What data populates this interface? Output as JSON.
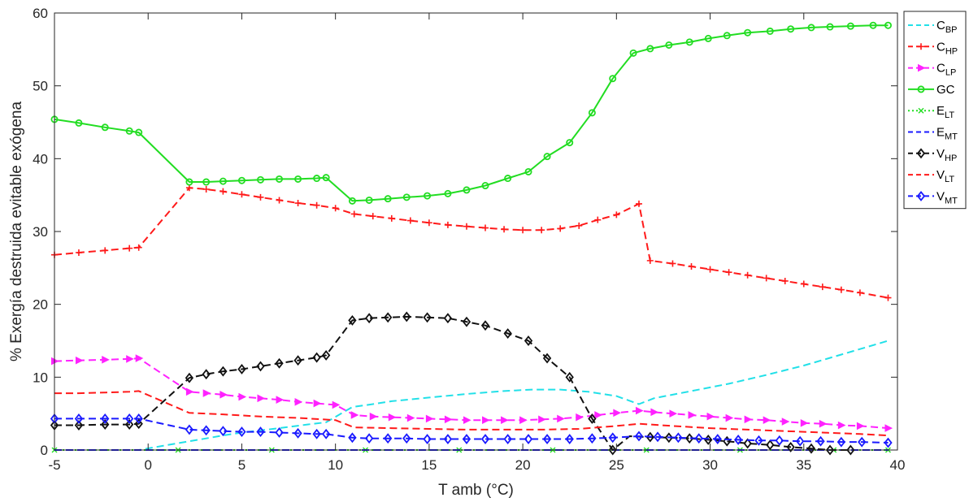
{
  "chart_data": {
    "type": "line",
    "title": "",
    "xlabel": "T amb (°C)",
    "ylabel": "% Exergía destruida evitable exógena",
    "xlim": [
      -5,
      40
    ],
    "ylim": [
      0,
      60
    ],
    "xticks": [
      -5,
      0,
      5,
      10,
      15,
      20,
      25,
      30,
      35,
      40
    ],
    "yticks": [
      0,
      10,
      20,
      30,
      40,
      50,
      60
    ],
    "xtick_labels": [
      "-5",
      "0",
      "5",
      "10",
      "15",
      "20",
      "25",
      "30",
      "35",
      "40"
    ],
    "ytick_labels": [
      "0",
      "10",
      "20",
      "30",
      "40",
      "50",
      "60"
    ],
    "grid": false,
    "legend_position": "outside-right",
    "series": [
      {
        "id": "cbp",
        "name": "C",
        "sub": "BP",
        "color": "#22e0e8",
        "dash": "9,5",
        "marker": "none",
        "x": [
          -5,
          -3.7,
          -2.3,
          -1,
          -0.5,
          2.2,
          3.1,
          4,
          5,
          6,
          7,
          8.5,
          9.5,
          10.9,
          12,
          13,
          15,
          17,
          19,
          20.5,
          22,
          23.5,
          25,
          26.2,
          27,
          29,
          31,
          33,
          35,
          37,
          39.5
        ],
        "y": [
          0,
          0,
          0,
          0,
          0,
          1.2,
          1.6,
          2,
          2.4,
          2.7,
          3,
          3.5,
          3.8,
          5.9,
          6.3,
          6.7,
          7.2,
          7.7,
          8.1,
          8.3,
          8.3,
          8,
          7.4,
          6.3,
          7.1,
          8.1,
          9.1,
          10.3,
          11.6,
          13.1,
          15
        ]
      },
      {
        "id": "chp",
        "name": "C",
        "sub": "HP",
        "color": "#ff1a1a",
        "dash": "9,5",
        "marker": "plus",
        "x": [
          -5,
          -3.7,
          -2.3,
          -1,
          -0.5,
          2.2,
          3.1,
          4,
          5,
          6,
          7,
          8,
          9,
          10,
          11,
          12,
          13,
          14,
          15,
          16,
          17,
          18,
          19,
          20,
          21,
          22,
          23,
          24,
          25,
          26.2,
          26.8,
          28,
          29,
          30,
          31,
          32,
          33,
          34,
          35,
          36,
          37,
          38,
          39.5
        ],
        "y": [
          26.8,
          27.1,
          27.4,
          27.7,
          27.8,
          36,
          35.8,
          35.5,
          35.1,
          34.7,
          34.3,
          33.9,
          33.6,
          33.2,
          32.4,
          32.1,
          31.8,
          31.5,
          31.2,
          30.9,
          30.7,
          30.5,
          30.3,
          30.2,
          30.2,
          30.4,
          30.8,
          31.6,
          32.3,
          33.8,
          26,
          25.6,
          25.2,
          24.8,
          24.4,
          24,
          23.6,
          23.2,
          22.8,
          22.4,
          22,
          21.6,
          20.9
        ]
      },
      {
        "id": "clp",
        "name": "C",
        "sub": "LP",
        "color": "#ff22ff",
        "dash": "9,5",
        "marker": "tri",
        "x": [
          -5,
          -3.7,
          -2.3,
          -1,
          -0.5,
          2.2,
          3.1,
          4,
          5,
          6,
          7,
          8,
          9,
          10,
          11,
          12,
          13,
          14,
          15,
          16,
          17,
          18,
          19,
          20,
          21,
          22,
          23,
          24,
          25,
          26.2,
          27,
          28,
          29,
          30,
          31,
          32,
          33,
          34,
          35,
          36,
          37,
          38,
          39.5
        ],
        "y": [
          12.2,
          12.3,
          12.4,
          12.5,
          12.6,
          8,
          7.8,
          7.6,
          7.3,
          7.1,
          6.9,
          6.6,
          6.4,
          6.2,
          4.8,
          4.6,
          4.5,
          4.4,
          4.3,
          4.2,
          4.1,
          4.1,
          4.1,
          4.1,
          4.2,
          4.3,
          4.5,
          4.8,
          5.1,
          5.4,
          5.2,
          5,
          4.8,
          4.6,
          4.4,
          4.2,
          4.1,
          3.9,
          3.7,
          3.6,
          3.4,
          3.3,
          3
        ]
      },
      {
        "id": "gc",
        "name": "GC",
        "sub": "",
        "color": "#22dd22",
        "dash": "",
        "marker": "circle",
        "x": [
          -5,
          -3.7,
          -2.3,
          -1,
          -0.5,
          2.2,
          3.1,
          4,
          5,
          6,
          7,
          8,
          9,
          9.5,
          10.9,
          11.8,
          12.8,
          13.8,
          14.9,
          16,
          17,
          18,
          19.2,
          20.3,
          21.3,
          22.5,
          23.7,
          24.8,
          25.9,
          26.8,
          27.8,
          28.9,
          29.9,
          30.9,
          32,
          33.2,
          34.3,
          35.4,
          36.4,
          37.5,
          38.7,
          39.5
        ],
        "y": [
          45.4,
          44.9,
          44.3,
          43.8,
          43.6,
          36.8,
          36.8,
          36.9,
          37,
          37.1,
          37.2,
          37.2,
          37.3,
          37.4,
          34.2,
          34.3,
          34.5,
          34.7,
          34.9,
          35.2,
          35.7,
          36.3,
          37.3,
          38.2,
          40.3,
          42.2,
          46.3,
          51,
          54.5,
          55.1,
          55.6,
          56,
          56.5,
          56.9,
          57.3,
          57.5,
          57.8,
          58,
          58.1,
          58.2,
          58.3,
          58.3
        ]
      },
      {
        "id": "elt",
        "name": "E",
        "sub": "LT",
        "color": "#22dd22",
        "dash": "2,3",
        "marker": "xsmall",
        "x": [
          -5,
          1.6,
          6.6,
          11.6,
          16.6,
          21.6,
          26.6,
          31.6,
          36.6,
          39.5
        ],
        "y": [
          0,
          0,
          0,
          0,
          0,
          0,
          0,
          0,
          0,
          0
        ]
      },
      {
        "id": "emt",
        "name": "E",
        "sub": "MT",
        "color": "#1a1aff",
        "dash": "9,5",
        "marker": "none",
        "x": [
          -5,
          39.5
        ],
        "y": [
          0,
          0
        ]
      },
      {
        "id": "vhp",
        "name": "V",
        "sub": "HP",
        "color": "#111111",
        "dash": "9,5",
        "marker": "diamond",
        "x": [
          -5,
          -3.7,
          -2.3,
          -1,
          -0.5,
          2.2,
          3.1,
          4,
          5,
          6,
          7,
          8,
          9,
          9.5,
          10.9,
          11.8,
          12.8,
          13.8,
          14.9,
          16,
          17,
          18,
          19.2,
          20.3,
          21.3,
          22.5,
          23.7,
          24.8,
          25.7,
          26.5,
          27.8,
          28.9,
          29.9,
          30.9,
          32,
          33.2,
          34.3,
          35.4,
          36.4,
          37.5
        ],
        "y": [
          3.4,
          3.4,
          3.5,
          3.5,
          3.6,
          9.9,
          10.4,
          10.8,
          11.1,
          11.5,
          11.9,
          12.3,
          12.7,
          13,
          17.8,
          18.1,
          18.2,
          18.3,
          18.2,
          18.1,
          17.6,
          17.1,
          16,
          15,
          12.6,
          10,
          4.3,
          0,
          1.9,
          1.8,
          1.7,
          1.6,
          1.4,
          1.2,
          0.9,
          0.7,
          0.4,
          0.2,
          0,
          0
        ],
        "marker_x": [
          -5,
          -3.7,
          -2.3,
          -1,
          -0.5,
          2.2,
          3.1,
          4,
          5,
          6,
          7,
          8,
          9,
          9.5,
          10.9,
          11.8,
          12.8,
          13.8,
          14.9,
          16,
          17,
          18,
          19.2,
          20.3,
          21.3,
          22.5,
          23.7,
          24.8,
          26.8,
          27.8,
          28.9,
          29.9,
          30.9,
          32,
          33.2,
          34.3,
          35.4,
          36.4,
          37.5
        ]
      },
      {
        "id": "vlt",
        "name": "V",
        "sub": "LT",
        "color": "#ff1a1a",
        "dash": "9,5",
        "marker": "none",
        "x": [
          -5,
          -3.7,
          -2.3,
          -1,
          -0.5,
          2.2,
          4,
          6,
          8,
          10,
          11,
          13,
          15,
          17,
          19,
          21,
          23,
          25,
          26.2,
          28,
          30,
          32,
          34,
          36,
          38,
          39.5
        ],
        "y": [
          7.8,
          7.8,
          7.9,
          8,
          8.1,
          5.1,
          4.9,
          4.6,
          4.4,
          4.1,
          3.1,
          3,
          2.9,
          2.8,
          2.8,
          2.8,
          2.9,
          3.3,
          3.6,
          3.3,
          3,
          2.8,
          2.6,
          2.4,
          2.2,
          2
        ]
      },
      {
        "id": "vmt",
        "name": "V",
        "sub": "MT",
        "color": "#1a1aff",
        "dash": "9,5",
        "marker": "diamond",
        "x": [
          -5,
          -3.7,
          -2.3,
          -1,
          -0.5,
          2.2,
          3.1,
          4,
          5,
          6,
          7,
          8,
          9,
          9.5,
          10.9,
          11.8,
          12.8,
          13.8,
          14.9,
          16,
          17,
          18,
          19.2,
          20.3,
          21.3,
          22.5,
          23.7,
          24.8,
          26.2,
          27.2,
          28.3,
          29.4,
          30.4,
          31.5,
          32.6,
          33.7,
          34.8,
          35.9,
          37,
          38.1,
          39.5
        ],
        "y": [
          4.3,
          4.3,
          4.3,
          4.3,
          4.3,
          2.8,
          2.7,
          2.6,
          2.5,
          2.5,
          2.4,
          2.3,
          2.2,
          2.2,
          1.7,
          1.6,
          1.6,
          1.6,
          1.5,
          1.5,
          1.5,
          1.5,
          1.5,
          1.5,
          1.5,
          1.5,
          1.6,
          1.7,
          1.9,
          1.8,
          1.7,
          1.6,
          1.5,
          1.4,
          1.3,
          1.3,
          1.2,
          1.2,
          1.1,
          1.1,
          1
        ]
      }
    ]
  }
}
